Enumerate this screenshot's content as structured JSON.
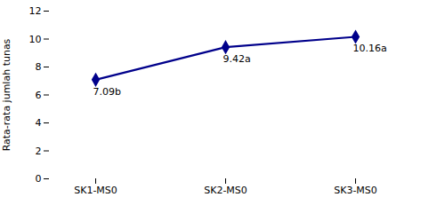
{
  "chart_data": {
    "type": "line",
    "categories": [
      "SK1-MS0",
      "SK2-MS0",
      "SK3-MS0"
    ],
    "values": [
      7.09,
      9.42,
      10.16
    ],
    "annotations": [
      "7.09b",
      "9.42a",
      "10.16a"
    ],
    "color": "#00008B",
    "marker": "diamond",
    "ylabel": "Rata-rata jumlah tunas",
    "ylim": [
      0,
      12
    ],
    "yticks": [
      0,
      2,
      4,
      6,
      8,
      10,
      12
    ],
    "grid": false
  }
}
